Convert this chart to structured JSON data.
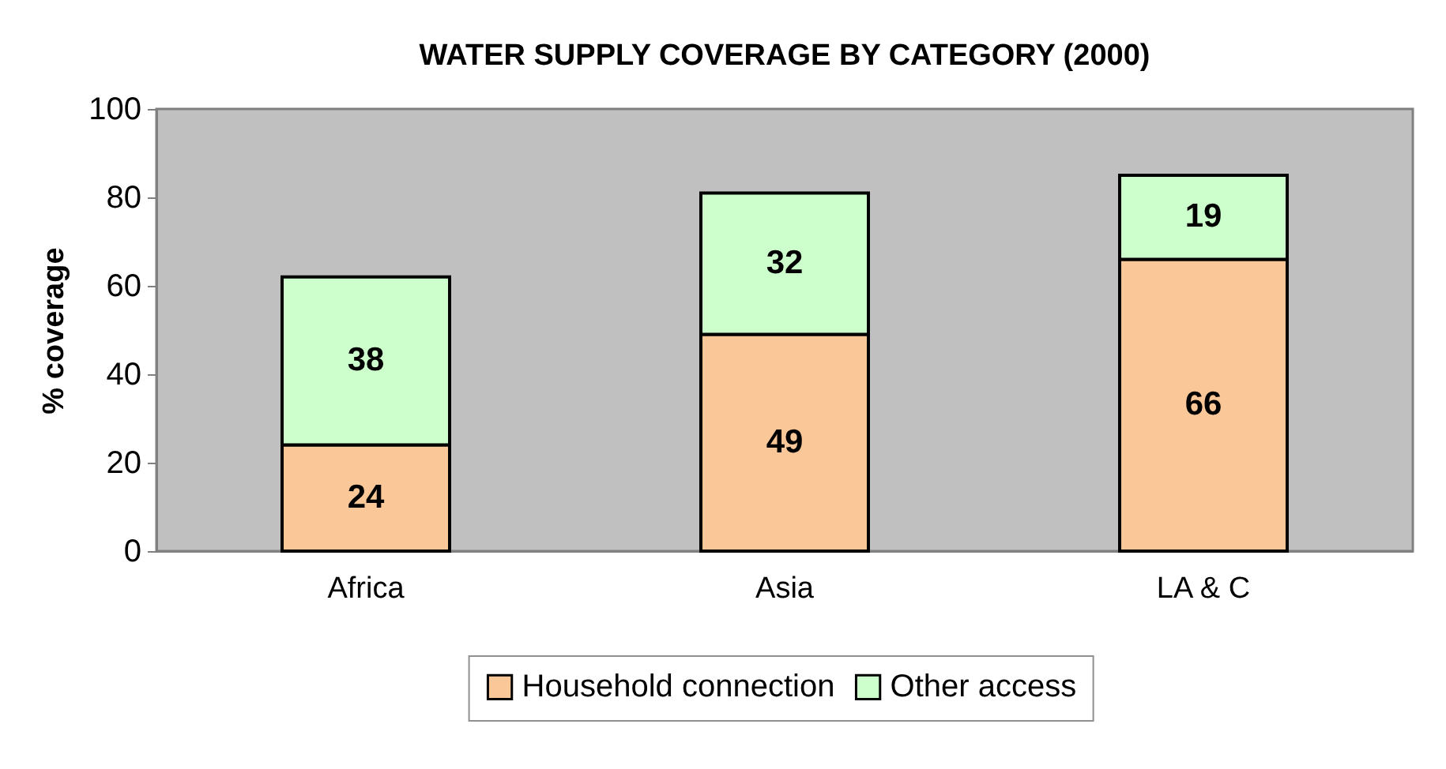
{
  "chart_data": {
    "type": "bar",
    "title": "WATER SUPPLY COVERAGE BY CATEGORY (2000)",
    "ylabel": "% coverage",
    "categories": [
      "Africa",
      "Asia",
      "LA & C"
    ],
    "stacked": true,
    "series": [
      {
        "name": "Household connection",
        "color": "#fac898",
        "values": [
          24,
          49,
          66
        ]
      },
      {
        "name": "Other access",
        "color": "#ccffcc",
        "values": [
          38,
          32,
          19
        ]
      }
    ],
    "ylim": [
      0,
      100
    ],
    "yticks": [
      0,
      20,
      40,
      60,
      80,
      100
    ],
    "grid": false,
    "legend": "bottom",
    "data_labels": true
  }
}
